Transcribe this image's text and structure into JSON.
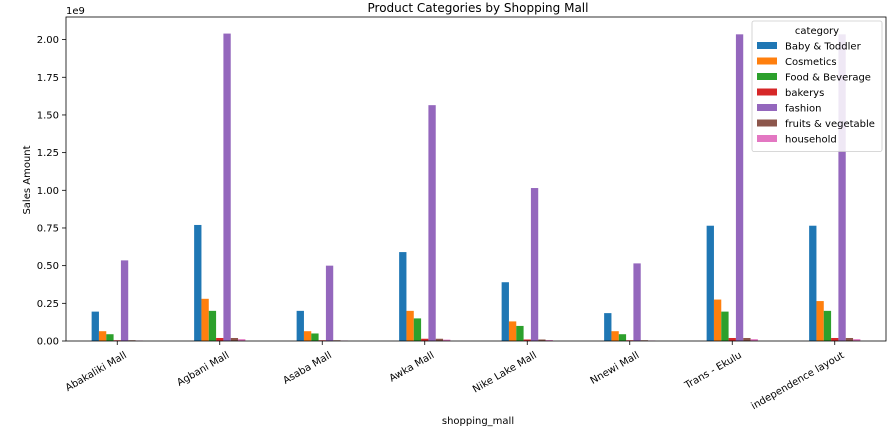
{
  "chart_data": {
    "type": "bar",
    "title": "Product Categories by Shopping Mall",
    "xlabel": "shopping_mall",
    "ylabel": "Sales Amount",
    "y_scale_label": "1e9",
    "ylim": [
      0,
      2.15
    ],
    "yticks": [
      0.0,
      0.25,
      0.5,
      0.75,
      1.0,
      1.25,
      1.5,
      1.75,
      2.0
    ],
    "ytick_labels": [
      "0.00",
      "0.25",
      "0.50",
      "0.75",
      "1.00",
      "1.25",
      "1.50",
      "1.75",
      "2.00"
    ],
    "grid": false,
    "legend": {
      "title": "category",
      "position": "top-right"
    },
    "categories": [
      "Abakaliki Mall",
      "Agbani Mall",
      "Asaba Mall",
      "Awka Mall",
      "Nike Lake Mall",
      "Nnewi Mall",
      "Trans - Ekulu",
      "independence layout"
    ],
    "series": [
      {
        "name": "Baby & Toddler",
        "color": "#1f77b4",
        "values": [
          0.195,
          0.77,
          0.2,
          0.59,
          0.39,
          0.185,
          0.765,
          0.765
        ]
      },
      {
        "name": "Cosmetics",
        "color": "#ff7f0e",
        "values": [
          0.065,
          0.28,
          0.065,
          0.2,
          0.13,
          0.065,
          0.275,
          0.265
        ]
      },
      {
        "name": "Food & Beverage",
        "color": "#2ca02c",
        "values": [
          0.045,
          0.2,
          0.05,
          0.15,
          0.1,
          0.045,
          0.195,
          0.2
        ]
      },
      {
        "name": "bakerys",
        "color": "#d62728",
        "values": [
          0.005,
          0.02,
          0.005,
          0.015,
          0.01,
          0.005,
          0.02,
          0.02
        ]
      },
      {
        "name": "fashion",
        "color": "#9467bd",
        "values": [
          0.535,
          2.04,
          0.5,
          1.565,
          1.015,
          0.515,
          2.035,
          2.035
        ]
      },
      {
        "name": "fruits & vegetable",
        "color": "#8c564b",
        "values": [
          0.005,
          0.02,
          0.005,
          0.015,
          0.01,
          0.005,
          0.02,
          0.02
        ]
      },
      {
        "name": "household",
        "color": "#e377c2",
        "values": [
          0.003,
          0.012,
          0.003,
          0.009,
          0.006,
          0.003,
          0.012,
          0.012
        ]
      }
    ]
  }
}
